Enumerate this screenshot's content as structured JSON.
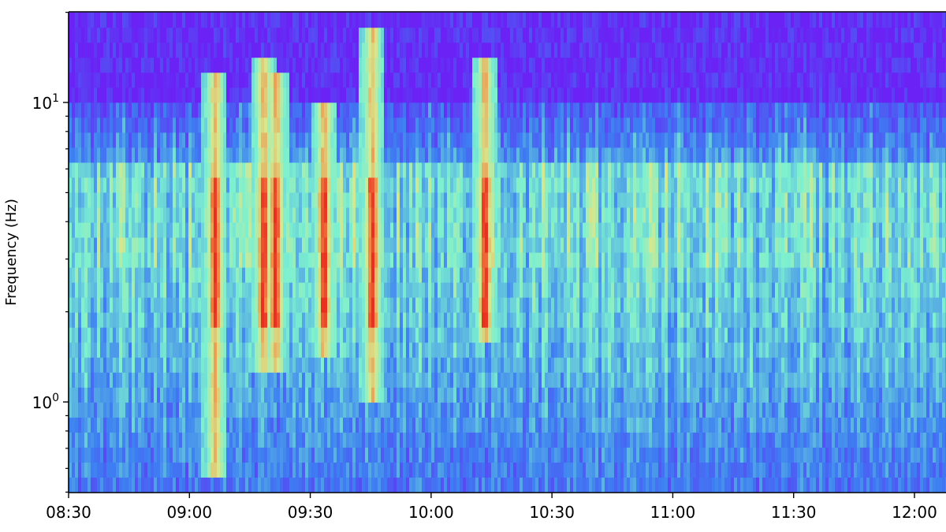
{
  "chart_data": {
    "type": "heatmap",
    "title": "",
    "xlabel": "",
    "ylabel": "Frequency (Hz)",
    "x_ticks": [
      "08:30",
      "09:00",
      "09:30",
      "10:00",
      "10:30",
      "11:00",
      "11:30",
      "12:00"
    ],
    "x_range": [
      "08:30",
      "12:08"
    ],
    "y_scale": "log",
    "y_range": [
      0.5,
      20
    ],
    "y_ticks": [
      {
        "value": 1,
        "base": "10",
        "exponent": "0"
      },
      {
        "value": 10,
        "base": "10",
        "exponent": "1"
      }
    ],
    "grid": false,
    "colormap": "rainbow",
    "colors": {
      "background_low": "#6a22f5",
      "mid_low": "#3d7ff2",
      "mid": "#7cf0d0",
      "mid_high": "#d6e88e",
      "high": "#e83020"
    },
    "high_energy_bursts": [
      {
        "time": "09:06",
        "freq_range": [
          0.7,
          12
        ]
      },
      {
        "time": "09:18",
        "freq_range": [
          1.5,
          14
        ]
      },
      {
        "time": "09:21",
        "freq_range": [
          1.5,
          12
        ]
      },
      {
        "time": "09:33",
        "freq_range": [
          1.8,
          10
        ]
      },
      {
        "time": "09:45",
        "freq_range": [
          1.2,
          17
        ]
      },
      {
        "time": "10:13",
        "freq_range": [
          2.0,
          14
        ]
      }
    ]
  }
}
